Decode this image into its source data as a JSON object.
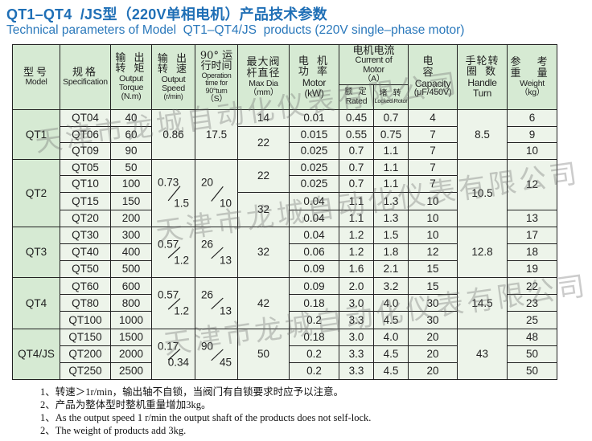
{
  "title": "QT1–QT4  /JS型（220V单相电机）产品技术参数",
  "subtitle": "Technical parameters of Model  QT1–QT4/JS  products (220V single–phase motor)",
  "header": {
    "model_cn": "型号",
    "model_en": "Model",
    "spec_cn": "规格",
    "spec_en": "Specification",
    "torque_cn1": "输 出",
    "torque_cn2": "转 矩",
    "torque_en": "Output Torque",
    "torque_unit": "(N.m)",
    "speed_cn1": "输 出",
    "speed_cn2": "转 速",
    "speed_en": "Output Speed",
    "speed_unit": "(r/min)",
    "time_cn1": "90° 运",
    "time_cn2": "行时间",
    "time_en": "Operation time for 90°turn",
    "time_unit": "（S）",
    "dia_cn1": "最大阀",
    "dia_cn2": "杆直径",
    "dia_en": "Max Dia",
    "dia_unit": "（mm）",
    "motor_cn1": "电 机",
    "motor_cn2": "功 率",
    "motor_en": "Motor",
    "motor_unit": "(kW)",
    "current_cn": "电机电流",
    "current_en": "Current of Motor",
    "current_unit": "（A）",
    "rated_cn": "额 定",
    "rated_en": "Rated",
    "locked_cn": "堵 转",
    "locked_en": "Locked Rotor",
    "cap_cn": "电 容",
    "cap_en": "Capacity",
    "cap_unit": "(μF/450V)",
    "handle_cn1": "手轮转",
    "handle_cn2": "圈 数",
    "handle_en": "Handle Turn",
    "weight_cn1": "参 考",
    "weight_cn2": "重 量",
    "weight_en": "Weight",
    "weight_unit": "（kg）"
  },
  "groups": [
    {
      "model": "QT1",
      "speed": {
        "top": "0.86"
      },
      "time": {
        "top": "17.5"
      },
      "handle": "8.5",
      "max_dia": [
        {
          "value": "14",
          "span": 1
        },
        {
          "value": "22",
          "span": 2
        }
      ],
      "weight": [
        {
          "value": "6",
          "span": 1
        },
        {
          "value": "9",
          "span": 1
        },
        {
          "value": "10",
          "span": 1
        }
      ],
      "rows": [
        {
          "spec": "QT04",
          "torque": "40",
          "motor": "0.01",
          "rated": "0.45",
          "locked": "0.7",
          "capacity": "4"
        },
        {
          "spec": "QT06",
          "torque": "60",
          "motor": "0.015",
          "rated": "0.55",
          "locked": "0.75",
          "capacity": "7"
        },
        {
          "spec": "QT09",
          "torque": "90",
          "motor": "0.025",
          "rated": "0.7",
          "locked": "1.1",
          "capacity": "7"
        }
      ]
    },
    {
      "model": "QT2",
      "speed": {
        "top": "0.73",
        "bottom": "1.5"
      },
      "time": {
        "top": "20",
        "bottom": "10"
      },
      "handle": "10.5",
      "max_dia": [
        {
          "value": "22",
          "span": 2
        },
        {
          "value": "32",
          "span": 2
        }
      ],
      "weight": [
        {
          "value": "12",
          "span": 3
        },
        {
          "value": "13",
          "span": 1
        }
      ],
      "rows": [
        {
          "spec": "QT05",
          "torque": "50",
          "motor": "0.025",
          "rated": "0.7",
          "locked": "1.1",
          "capacity": "7"
        },
        {
          "spec": "QT10",
          "torque": "100",
          "motor": "0.025",
          "rated": "0.7",
          "locked": "1.1",
          "capacity": "7"
        },
        {
          "spec": "QT15",
          "torque": "150",
          "motor": "0.04",
          "rated": "1.1",
          "locked": "1.3",
          "capacity": "10"
        },
        {
          "spec": "QT20",
          "torque": "200",
          "motor": "0.04",
          "rated": "1.1",
          "locked": "1.3",
          "capacity": "10"
        }
      ]
    },
    {
      "model": "QT3",
      "speed": {
        "top": "0.57",
        "bottom": "1.2"
      },
      "time": {
        "top": "26",
        "bottom": "13"
      },
      "handle": "12.8",
      "max_dia": [
        {
          "value": "32",
          "span": 3
        }
      ],
      "weight": [
        {
          "value": "17",
          "span": 1
        },
        {
          "value": "18",
          "span": 1
        },
        {
          "value": "19",
          "span": 1
        }
      ],
      "rows": [
        {
          "spec": "QT30",
          "torque": "300",
          "motor": "0.04",
          "rated": "1.2",
          "locked": "1.5",
          "capacity": "10"
        },
        {
          "spec": "QT40",
          "torque": "400",
          "motor": "0.06",
          "rated": "1.2",
          "locked": "1.8",
          "capacity": "12"
        },
        {
          "spec": "QT50",
          "torque": "500",
          "motor": "0.09",
          "rated": "1.6",
          "locked": "2.1",
          "capacity": "15"
        }
      ]
    },
    {
      "model": "QT4",
      "speed": {
        "top": "0.57",
        "bottom": "1.2"
      },
      "time": {
        "top": "26",
        "bottom": "13"
      },
      "handle": "14.5",
      "max_dia": [
        {
          "value": "42",
          "span": 3
        }
      ],
      "weight": [
        {
          "value": "22",
          "span": 1
        },
        {
          "value": "23",
          "span": 1
        },
        {
          "value": "25",
          "span": 1
        }
      ],
      "rows": [
        {
          "spec": "QT60",
          "torque": "600",
          "motor": "0.09",
          "rated": "2.0",
          "locked": "3.2",
          "capacity": "15"
        },
        {
          "spec": "QT80",
          "torque": "800",
          "motor": "0.18",
          "rated": "3.0",
          "locked": "4.0",
          "capacity": "30"
        },
        {
          "spec": "QT100",
          "torque": "1000",
          "motor": "0.2",
          "rated": "3.3",
          "locked": "4.5",
          "capacity": "30"
        }
      ]
    },
    {
      "model": "QT4/JS",
      "speed": {
        "top": "0.17",
        "bottom": "0.34"
      },
      "time": {
        "top": "90",
        "bottom": "45"
      },
      "handle": "43",
      "max_dia": [
        {
          "value": "50",
          "span": 3
        }
      ],
      "weight": [
        {
          "value": "48",
          "span": 1
        },
        {
          "value": "50",
          "span": 1
        },
        {
          "value": "50",
          "span": 1
        }
      ],
      "rows": [
        {
          "spec": "QT150",
          "torque": "1500",
          "motor": "0.18",
          "rated": "3.0",
          "locked": "4.0",
          "capacity": "20"
        },
        {
          "spec": "QT200",
          "torque": "2000",
          "motor": "0.2",
          "rated": "3.3",
          "locked": "4.5",
          "capacity": "20"
        },
        {
          "spec": "QT250",
          "torque": "2500",
          "motor": "0.2",
          "rated": "3.3",
          "locked": "4.5",
          "capacity": "20"
        }
      ]
    }
  ],
  "notes": [
    "1、转速＞1r/min，输出轴不自锁，当阀门有自锁要求时应予以注意。",
    "2、产品为整体型时整机重量增加3kg。",
    "1、As the output speed 1 r/min the output shaft of the products does not self-lock.",
    "2、The weight of products add 3kg."
  ],
  "watermark": "天津市龙城自动化仪表有限公司",
  "colors": {
    "title": "#1f6fb6",
    "header_bg": "#d6ead3",
    "cell_bg": "#edf4ea",
    "border": "#222222"
  }
}
